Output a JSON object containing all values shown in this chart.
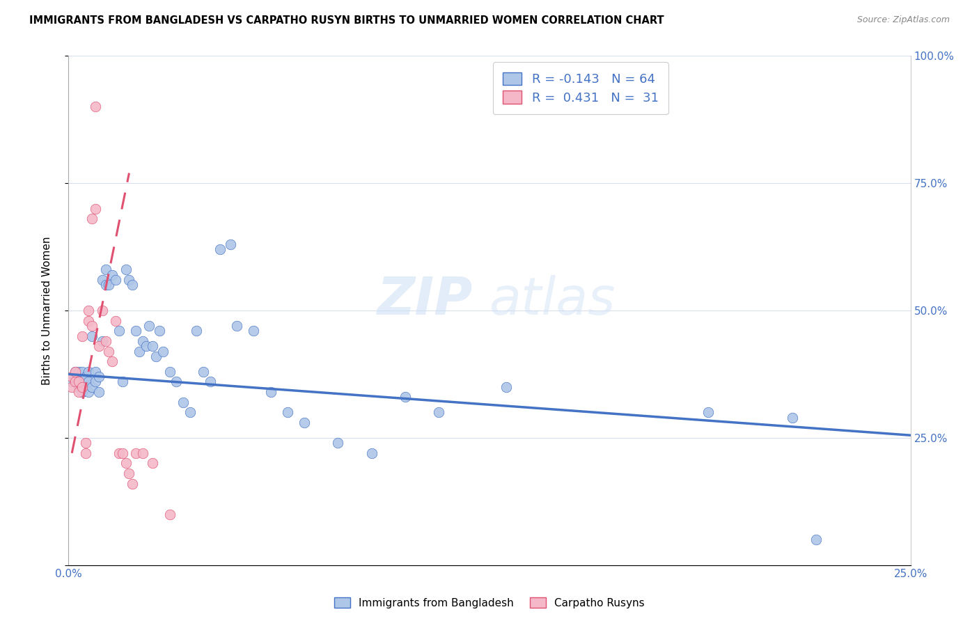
{
  "title": "IMMIGRANTS FROM BANGLADESH VS CARPATHO RUSYN BIRTHS TO UNMARRIED WOMEN CORRELATION CHART",
  "source": "Source: ZipAtlas.com",
  "ylabel": "Births to Unmarried Women",
  "legend_label1": "Immigrants from Bangladesh",
  "legend_label2": "Carpatho Rusyns",
  "R1": "-0.143",
  "N1": "64",
  "R2": "0.431",
  "N2": "31",
  "blue_color": "#aec6e8",
  "pink_color": "#f5b8c8",
  "trend_blue": "#4472c4",
  "trend_pink": "#e05070",
  "watermark_zip": "ZIP",
  "watermark_atlas": "atlas",
  "xlim": [
    0.0,
    0.25
  ],
  "ylim": [
    0.0,
    1.0
  ],
  "blue_x": [
    0.001,
    0.002,
    0.002,
    0.003,
    0.003,
    0.003,
    0.004,
    0.004,
    0.004,
    0.005,
    0.005,
    0.005,
    0.006,
    0.006,
    0.006,
    0.007,
    0.007,
    0.008,
    0.008,
    0.009,
    0.009,
    0.01,
    0.01,
    0.011,
    0.011,
    0.012,
    0.013,
    0.014,
    0.015,
    0.016,
    0.017,
    0.018,
    0.019,
    0.02,
    0.021,
    0.022,
    0.023,
    0.024,
    0.025,
    0.026,
    0.027,
    0.028,
    0.03,
    0.032,
    0.034,
    0.036,
    0.038,
    0.04,
    0.042,
    0.045,
    0.048,
    0.05,
    0.055,
    0.06,
    0.065,
    0.07,
    0.08,
    0.09,
    0.1,
    0.11,
    0.13,
    0.19,
    0.215,
    0.222
  ],
  "blue_y": [
    0.36,
    0.37,
    0.38,
    0.35,
    0.36,
    0.38,
    0.34,
    0.36,
    0.38,
    0.35,
    0.36,
    0.37,
    0.34,
    0.36,
    0.38,
    0.35,
    0.45,
    0.36,
    0.38,
    0.34,
    0.37,
    0.44,
    0.56,
    0.55,
    0.58,
    0.55,
    0.57,
    0.56,
    0.46,
    0.36,
    0.58,
    0.56,
    0.55,
    0.46,
    0.42,
    0.44,
    0.43,
    0.47,
    0.43,
    0.41,
    0.46,
    0.42,
    0.38,
    0.36,
    0.32,
    0.3,
    0.46,
    0.38,
    0.36,
    0.62,
    0.63,
    0.47,
    0.46,
    0.34,
    0.3,
    0.28,
    0.24,
    0.22,
    0.33,
    0.3,
    0.35,
    0.3,
    0.29,
    0.05
  ],
  "pink_x": [
    0.001,
    0.001,
    0.002,
    0.002,
    0.003,
    0.003,
    0.004,
    0.004,
    0.005,
    0.005,
    0.006,
    0.006,
    0.007,
    0.007,
    0.008,
    0.008,
    0.009,
    0.01,
    0.011,
    0.012,
    0.013,
    0.014,
    0.015,
    0.016,
    0.017,
    0.018,
    0.019,
    0.02,
    0.022,
    0.025,
    0.03
  ],
  "pink_y": [
    0.35,
    0.37,
    0.36,
    0.38,
    0.34,
    0.36,
    0.35,
    0.45,
    0.22,
    0.24,
    0.5,
    0.48,
    0.47,
    0.68,
    0.7,
    0.9,
    0.43,
    0.5,
    0.44,
    0.42,
    0.4,
    0.48,
    0.22,
    0.22,
    0.2,
    0.18,
    0.16,
    0.22,
    0.22,
    0.2,
    0.1
  ],
  "blue_trend_x": [
    0.0,
    0.25
  ],
  "blue_trend_y": [
    0.375,
    0.255
  ],
  "pink_trend_x": [
    0.001,
    0.018
  ],
  "pink_trend_y": [
    0.22,
    0.77
  ]
}
